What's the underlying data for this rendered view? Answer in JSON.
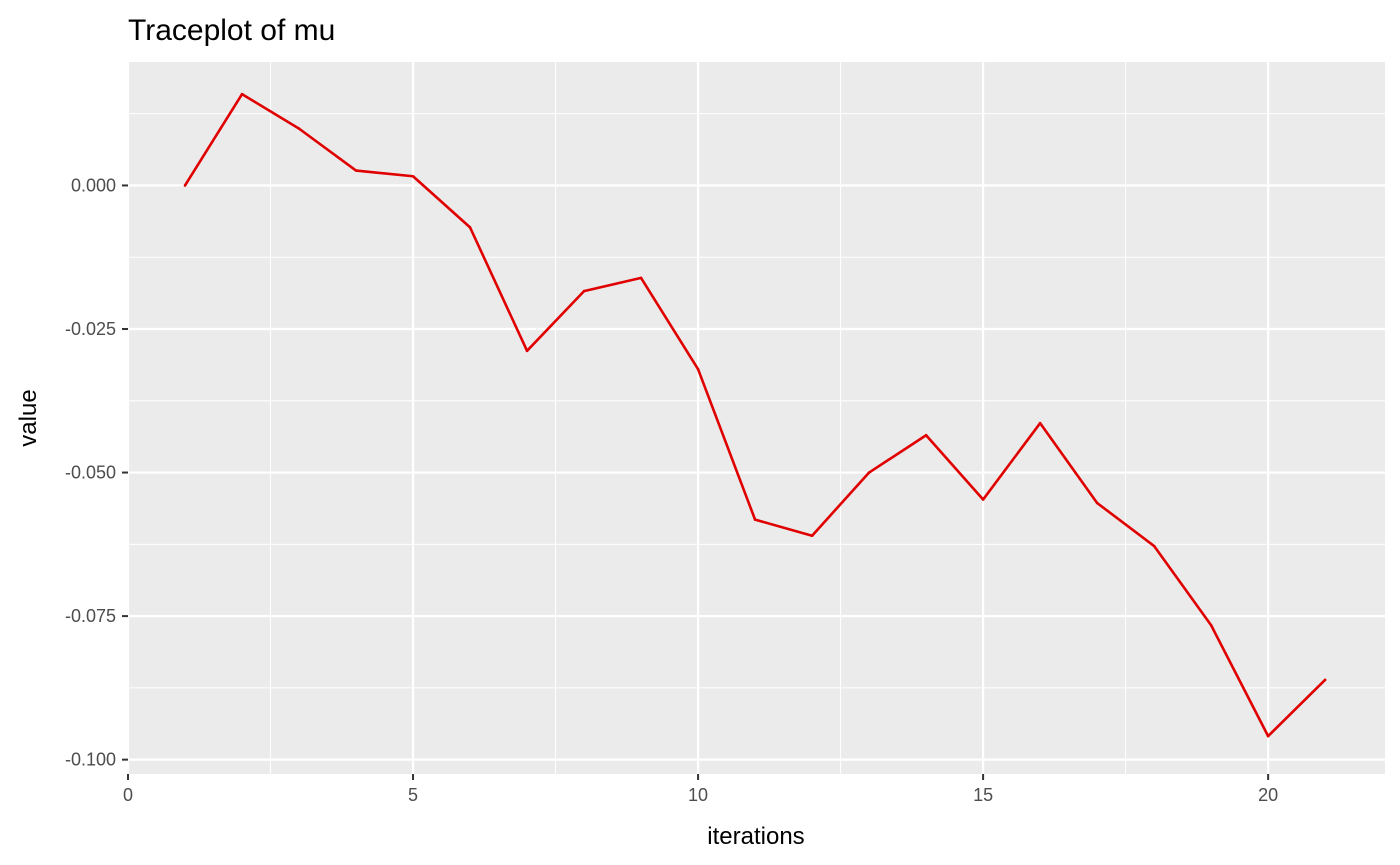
{
  "chart_data": {
    "type": "line",
    "title": "Traceplot of mu",
    "xlabel": "iterations",
    "ylabel": "value",
    "xlim": [
      0,
      22.05
    ],
    "ylim": [
      -0.1,
      0.02
    ],
    "x_ticks": [
      0,
      5,
      10,
      15,
      20
    ],
    "x_tick_labels": [
      "0",
      "5",
      "10",
      "15",
      "20"
    ],
    "y_ticks": [
      0.0,
      -0.025,
      -0.05,
      -0.075,
      -0.1
    ],
    "y_tick_labels": [
      "0.000",
      "-0.025",
      "-0.050",
      "-0.075",
      "-0.100"
    ],
    "grid": true,
    "background": "#ebebeb",
    "line_color": "#e00000",
    "x": [
      1,
      2,
      3,
      4,
      5,
      6,
      7,
      8,
      9,
      10,
      11,
      12,
      13,
      14,
      15,
      16,
      17,
      18,
      19,
      20,
      21
    ],
    "values": [
      0.0,
      0.0159,
      0.0099,
      0.0026,
      0.0016,
      -0.0073,
      -0.0288,
      -0.0184,
      -0.0161,
      -0.032,
      -0.0582,
      -0.061,
      -0.05,
      -0.0435,
      -0.0547,
      -0.0414,
      -0.0553,
      -0.0628,
      -0.0766,
      -0.0959,
      -0.0861
    ]
  }
}
